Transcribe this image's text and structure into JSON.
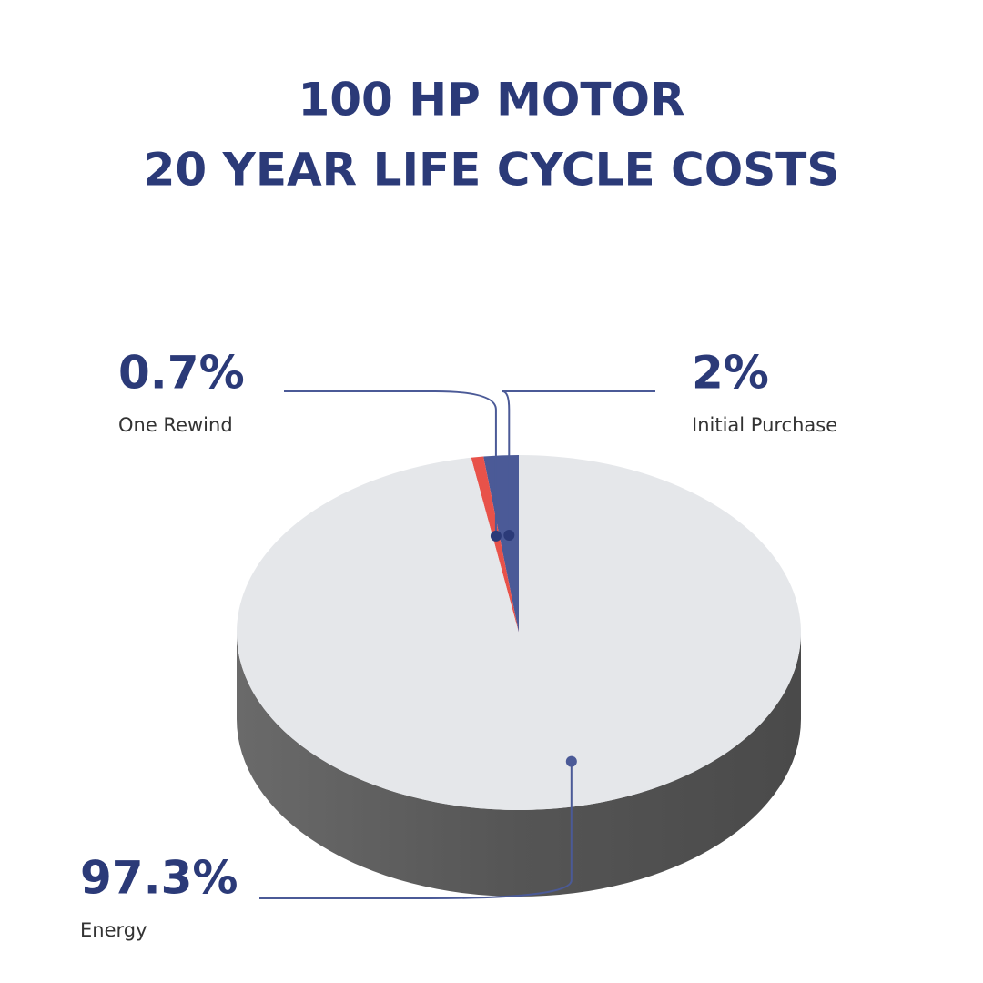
{
  "chart_data": {
    "type": "pie",
    "title": [
      "100 HP MOTOR",
      "20 YEAR LIFE CYCLE COSTS"
    ],
    "categories": [
      "Initial Purchase",
      "One Rewind",
      "Energy"
    ],
    "values": [
      2,
      0.7,
      97.3
    ],
    "value_labels": [
      "2%",
      "0.7%",
      "97.3%"
    ],
    "colors": [
      "#4b5a97",
      "#e8524a",
      "#e5e7ea"
    ]
  }
}
